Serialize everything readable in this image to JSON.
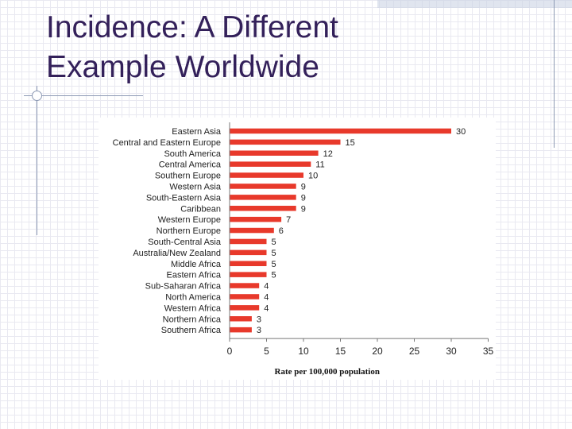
{
  "slide": {
    "title_line1": "Incidence: A Different",
    "title_line2": "Example Worldwide"
  },
  "chart_data": {
    "type": "bar",
    "orientation": "horizontal",
    "categories": [
      "Eastern Asia",
      "Central and Eastern Europe",
      "South America",
      "Central America",
      "Southern Europe",
      "Western Asia",
      "South-Eastern Asia",
      "Caribbean",
      "Western Europe",
      "Northern Europe",
      "South-Central Asia",
      "Australia/New Zealand",
      "Middle Africa",
      "Eastern Africa",
      "Sub-Saharan Africa",
      "North America",
      "Western Africa",
      "Northern Africa",
      "Southern Africa"
    ],
    "values": [
      30,
      15,
      12,
      11,
      10,
      9,
      9,
      9,
      7,
      6,
      5,
      5,
      5,
      5,
      4,
      4,
      4,
      3,
      3
    ],
    "title": "",
    "xlabel": "Rate per 100,000 population",
    "ylabel": "",
    "xlim": [
      0,
      35
    ],
    "xticks": [
      0,
      5,
      10,
      15,
      20,
      25,
      30,
      35
    ],
    "grid": false,
    "legend": "none",
    "bar_color": "#e8392b"
  }
}
